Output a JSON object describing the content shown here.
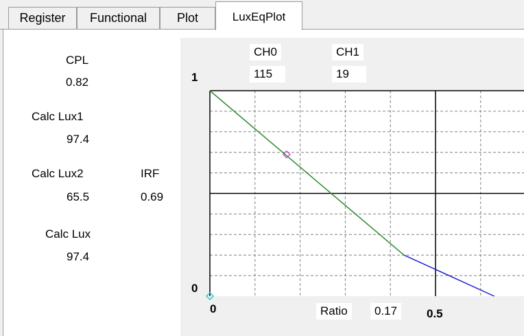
{
  "tabs": [
    {
      "label": "Register"
    },
    {
      "label": "Functional"
    },
    {
      "label": "Plot"
    },
    {
      "label": "LuxEqPlot"
    }
  ],
  "left": {
    "cpl_label": "CPL",
    "cpl_value": "0.82",
    "calc_lux1_label": "Calc Lux1",
    "calc_lux1_value": "97.4",
    "calc_lux2_label": "Calc Lux2",
    "calc_lux2_value": "65.5",
    "irf_label": "IRF",
    "irf_value": "0.69",
    "calc_lux_label": "Calc Lux",
    "calc_lux_value": "97.4"
  },
  "plot": {
    "ch0_label": "CH0",
    "ch0_value": "115",
    "ch1_label": "CH1",
    "ch1_value": "19",
    "y_top_label": "1",
    "y_bottom_label": "0",
    "x_left_label": "0",
    "x_mid_label": "0.5",
    "ratio_label": "Ratio",
    "ratio_value": "0.17"
  },
  "chart_data": {
    "type": "line",
    "xlim": [
      0,
      1
    ],
    "ylim": [
      0,
      1
    ],
    "series": [
      {
        "color": "#2e8b2e",
        "x": [
          0,
          0.43
        ],
        "y": [
          1,
          0.2
        ]
      },
      {
        "color": "#2020d0",
        "x": [
          0.43,
          0.63
        ],
        "y": [
          0.2,
          0
        ]
      }
    ],
    "points": [
      {
        "x": 0.17,
        "y": 0.69,
        "marker": "diamond",
        "color": "#c040c0"
      },
      {
        "x": 0.0,
        "y": 0.0,
        "marker": "diamond",
        "color": "#20c0c0"
      }
    ],
    "colors": {
      "major_grid": "#000000",
      "minor_grid": "#808080"
    }
  }
}
